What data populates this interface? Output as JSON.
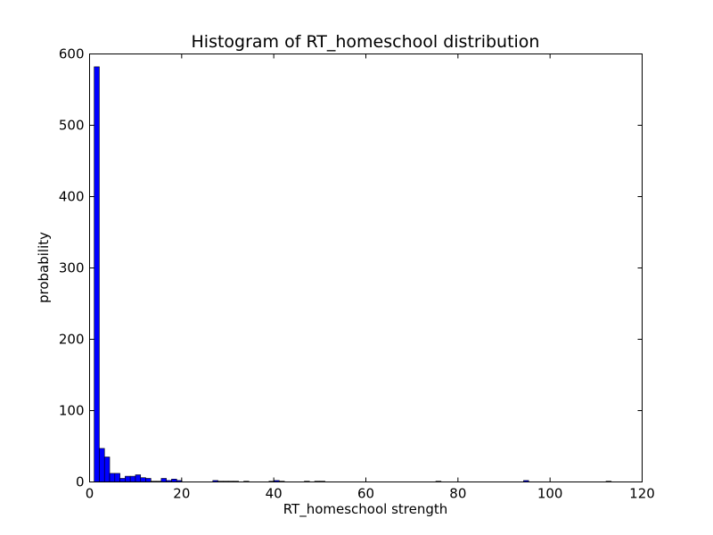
{
  "chart_data": {
    "type": "bar",
    "title": "Histogram of RT_homeschool  distribution",
    "xlabel": "RT_homeschool  strength",
    "ylabel": "probability",
    "xlim": [
      0,
      120
    ],
    "ylim": [
      0,
      600
    ],
    "xticks": [
      0,
      20,
      40,
      60,
      80,
      100,
      120
    ],
    "yticks": [
      0,
      100,
      200,
      300,
      400,
      500,
      600
    ],
    "grid": false,
    "bar_color": "#0000ff",
    "bin_width": 1.12,
    "bins": [
      {
        "x": 1.0,
        "value": 582
      },
      {
        "x": 2.12,
        "value": 47
      },
      {
        "x": 3.24,
        "value": 35
      },
      {
        "x": 4.36,
        "value": 12
      },
      {
        "x": 5.48,
        "value": 12
      },
      {
        "x": 6.6,
        "value": 5
      },
      {
        "x": 7.72,
        "value": 8
      },
      {
        "x": 8.84,
        "value": 8
      },
      {
        "x": 9.96,
        "value": 10
      },
      {
        "x": 11.08,
        "value": 6
      },
      {
        "x": 12.2,
        "value": 5
      },
      {
        "x": 13.32,
        "value": 1
      },
      {
        "x": 14.44,
        "value": 1
      },
      {
        "x": 15.56,
        "value": 5
      },
      {
        "x": 16.68,
        "value": 2
      },
      {
        "x": 17.8,
        "value": 4
      },
      {
        "x": 18.92,
        "value": 2
      },
      {
        "x": 26.76,
        "value": 2
      },
      {
        "x": 27.88,
        "value": 1
      },
      {
        "x": 29.0,
        "value": 1
      },
      {
        "x": 30.12,
        "value": 1
      },
      {
        "x": 31.24,
        "value": 1
      },
      {
        "x": 33.48,
        "value": 1
      },
      {
        "x": 38.96,
        "value": 1
      },
      {
        "x": 40.08,
        "value": 2
      },
      {
        "x": 41.2,
        "value": 1
      },
      {
        "x": 46.64,
        "value": 1
      },
      {
        "x": 48.88,
        "value": 1
      },
      {
        "x": 50.0,
        "value": 1
      },
      {
        "x": 75.2,
        "value": 1
      },
      {
        "x": 94.24,
        "value": 2
      },
      {
        "x": 112.16,
        "value": 1
      }
    ]
  }
}
